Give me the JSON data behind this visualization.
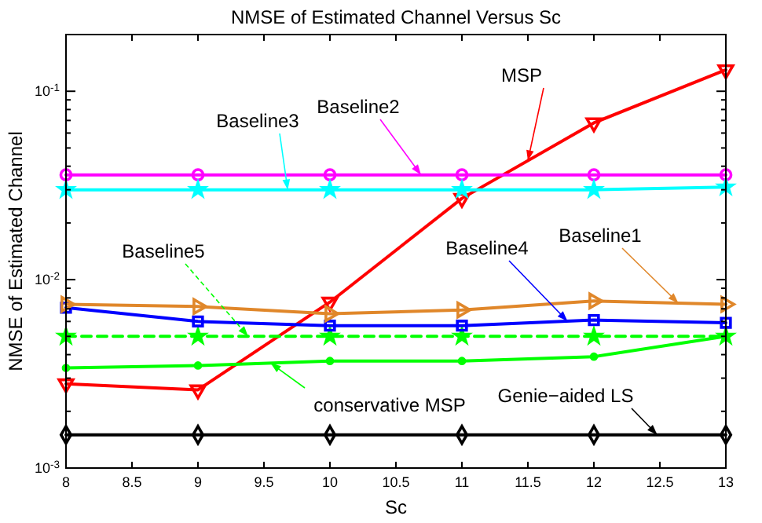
{
  "chart_data": {
    "type": "line",
    "title": "NMSE of Estimated Channel Versus Sc",
    "xlabel": "Sc",
    "ylabel": "NMSE of Estimated Channel",
    "x": [
      8,
      9,
      10,
      11,
      12,
      13
    ],
    "xlim": [
      8,
      13
    ],
    "xticks": [
      8,
      8.5,
      9,
      9.5,
      10,
      10.5,
      11,
      11.5,
      12,
      12.5,
      13
    ],
    "ylim": [
      0.001,
      0.2
    ],
    "log": "y",
    "grid": false,
    "yticks": [
      {
        "value": 0.001,
        "label": "10$^{-3}$"
      },
      {
        "value": 0.002,
        "label": null
      },
      {
        "value": 0.003,
        "label": null
      },
      {
        "value": 0.004,
        "label": null
      },
      {
        "value": 0.005,
        "label": null
      },
      {
        "value": 0.006,
        "label": null
      },
      {
        "value": 0.007,
        "label": null
      },
      {
        "value": 0.008,
        "label": null
      },
      {
        "value": 0.009,
        "label": null
      },
      {
        "value": 0.01,
        "label": "10$^{-2}$"
      },
      {
        "value": 0.02,
        "label": null
      },
      {
        "value": 0.03,
        "label": null
      },
      {
        "value": 0.04,
        "label": null
      },
      {
        "value": 0.05,
        "label": null
      },
      {
        "value": 0.06,
        "label": null
      },
      {
        "value": 0.07,
        "label": null
      },
      {
        "value": 0.08,
        "label": null
      },
      {
        "value": 0.09,
        "label": null
      },
      {
        "value": 0.1,
        "label": "10$^{-1}$"
      },
      {
        "value": 0.2,
        "label": null
      }
    ],
    "series": [
      {
        "name": "MSP",
        "color": "#ff0000",
        "marker": "triangle",
        "values": [
          0.0028,
          0.0026,
          0.0076,
          0.027,
          0.068,
          0.13
        ]
      },
      {
        "name": "Baseline2",
        "color": "#ff00ff",
        "marker": "circle",
        "values": [
          0.036,
          0.036,
          0.036,
          0.036,
          0.036,
          0.036
        ]
      },
      {
        "name": "Baseline3",
        "color": "#00ffff",
        "marker": "star",
        "values": [
          0.03,
          0.03,
          0.03,
          0.03,
          0.03,
          0.031
        ]
      },
      {
        "name": "Baseline5",
        "color": "#00ff00",
        "marker": "star",
        "line_style": "dashed",
        "values": [
          0.005,
          0.005,
          0.005,
          0.005,
          0.005,
          0.005
        ]
      },
      {
        "name": "Baseline4",
        "color": "#0000ff",
        "marker": "square",
        "values": [
          0.0071,
          0.006,
          0.0057,
          0.0057,
          0.0061,
          0.0059
        ]
      },
      {
        "name": "Baseline1",
        "color": "#e0872a",
        "marker": "triangle",
        "values": [
          0.0074,
          0.0072,
          0.0066,
          0.0069,
          0.0077,
          0.0074
        ]
      },
      {
        "name": "conservative MSP",
        "color": "#00ff00",
        "marker": "circle",
        "values": [
          0.0034,
          0.0035,
          0.0037,
          0.0037,
          0.0039,
          0.005
        ]
      },
      {
        "name": "Genie−aided LS",
        "color": "#000000",
        "marker": "diamond",
        "values": [
          0.0015,
          0.0015,
          0.0015,
          0.0015,
          0.0015,
          0.0015
        ]
      }
    ]
  }
}
